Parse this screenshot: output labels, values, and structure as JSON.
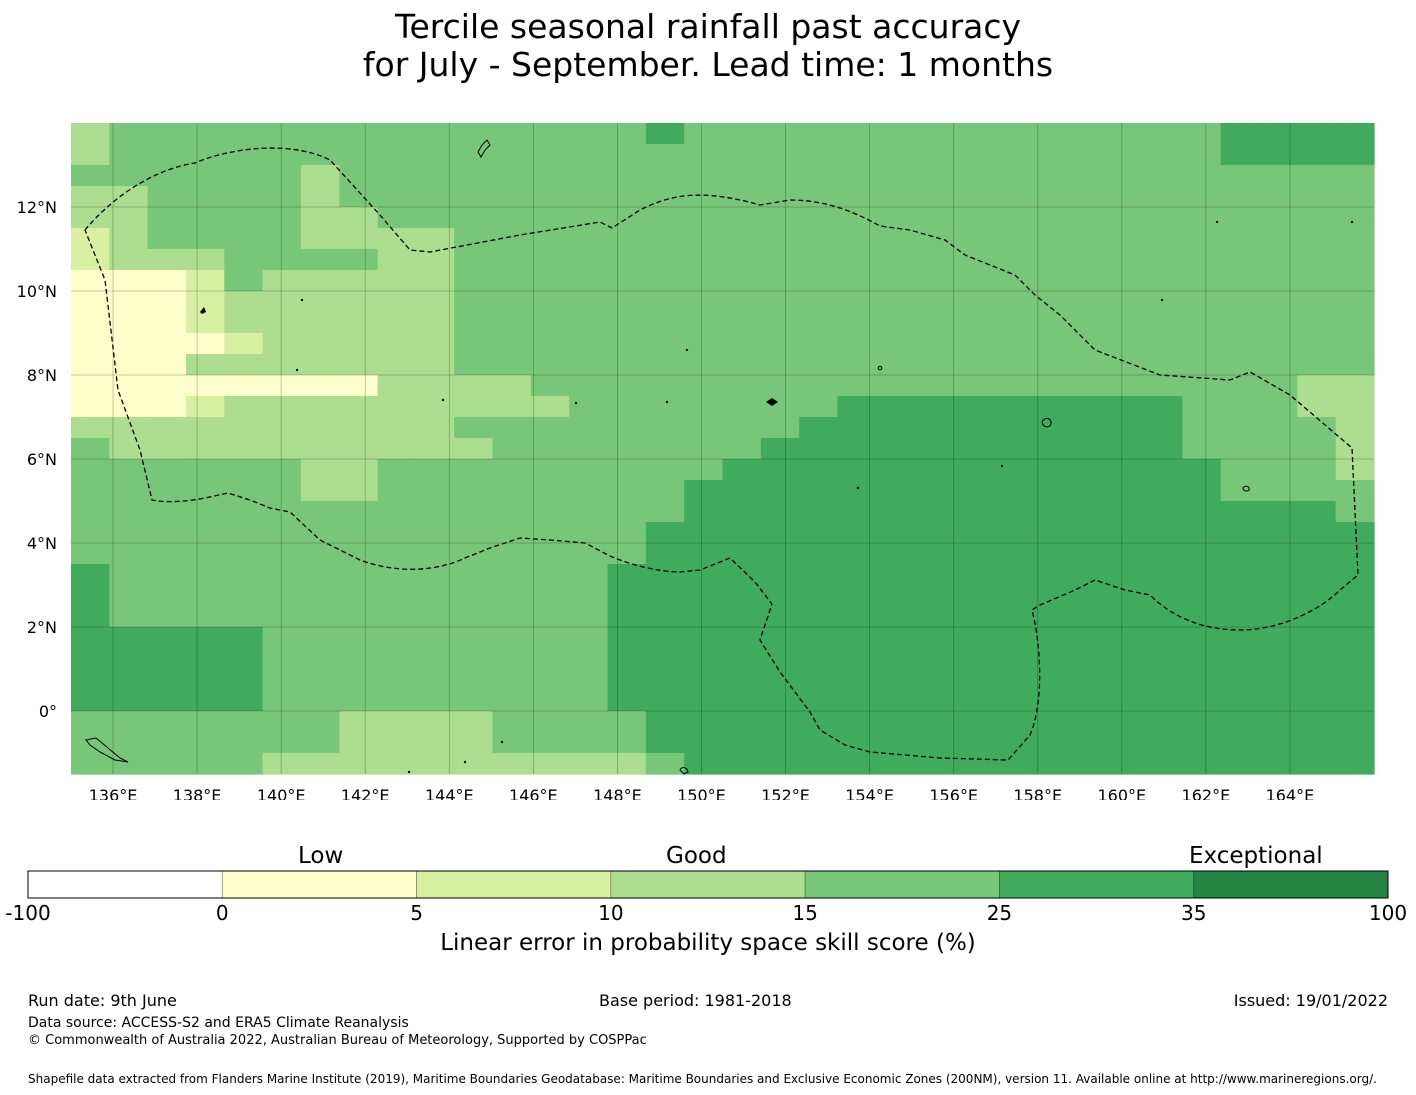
{
  "title": {
    "line1": "Tercile seasonal rainfall past accuracy",
    "line2": "for July - September. Lead time: 1 months"
  },
  "map": {
    "lat_labels": [
      "12°N",
      "10°N",
      "8°N",
      "6°N",
      "4°N",
      "2°N",
      "0°"
    ],
    "lon_labels": [
      "136°E",
      "138°E",
      "140°E",
      "142°E",
      "144°E",
      "146°E",
      "148°E",
      "150°E",
      "152°E",
      "154°E",
      "156°E",
      "158°E",
      "160°E",
      "162°E",
      "164°E"
    ],
    "lat_values": [
      12,
      10,
      8,
      6,
      4,
      2,
      0
    ],
    "lon_values": [
      136,
      138,
      140,
      142,
      144,
      146,
      148,
      150,
      152,
      154,
      156,
      158,
      160,
      162,
      164
    ],
    "extent": {
      "lon_min": 135.0,
      "lon_max": 166.0,
      "lat_min": -1.5,
      "lat_max": 14.0
    },
    "grid_rows": [
      "3444444444444445444444444444445555",
      "3444444444444444444444444444445555",
      "4444443444444444444444444444444444",
      "3344443444444444444444444444444444",
      "3344443344444444444444444444444444",
      "2344443333444444444444444444444444",
      "2333444433444444444444444444444444",
      "1112433333444444444444444444444444",
      "1112333333444444444444444444444444",
      "1112333333444444444444444444444444",
      "1111233333444444444444444444444444",
      "1113333333444444444444444444444444",
      "1111111133334444444444444444444433",
      "1112333333333444444455555555544433",
      "3333333333444444444555555555544443",
      "4333333333344444445555555555544443",
      "4444443344444444455555555555554443",
      "4444443344444444555555555555554444",
      "4444444444444444555555555555555554",
      "4444444444444445555555555555555555",
      "4444444444444445555555555555555555",
      "5444444444444455555555555555555555",
      "5444444444444455555555555555555555",
      "5444444444444455555555555555555555",
      "5555544444444455555555555555555555",
      "5555544444444455555555555555555555",
      "5555544444444455555555555555555555",
      "5555544444444455555555555555555555",
      "4444444333344445555555555555555555",
      "4444444333344445555555555555555555",
      "4444433333333334555555555555555555"
    ],
    "palette": [
      "#ffffff",
      "#ffffcc",
      "#d9f0a3",
      "#addd8e",
      "#78c679",
      "#41ab5d",
      "#238443"
    ]
  },
  "colorbar": {
    "categories": [
      "Low",
      "Good",
      "Exceptional"
    ],
    "ticks": [
      "-100",
      "0",
      "5",
      "10",
      "15",
      "25",
      "35",
      "100"
    ],
    "colors": [
      "#ffffff",
      "#ffffcc",
      "#d9f0a3",
      "#addd8e",
      "#78c679",
      "#41ab5d",
      "#238443"
    ],
    "label": "Linear error in probability space skill score (%)"
  },
  "footer": {
    "run_date": "Run date: 9th June",
    "base_period": "Base period: 1981-2018",
    "issued": "Issued: 19/01/2022",
    "data_source": "Data source: ACCESS-S2 and ERA5 Climate Reanalysis",
    "copyright": "© Commonwealth of Australia 2022, Australian Bureau of Meteorology, Supported by COSPPac",
    "shapefile": "Shapefile data extracted from Flanders Marine Institute (2019), Maritime Boundaries Geodatabase: Maritime Boundaries and Exclusive Economic Zones (200NM), version 11. Available online at http://www.marineregions.org/."
  }
}
